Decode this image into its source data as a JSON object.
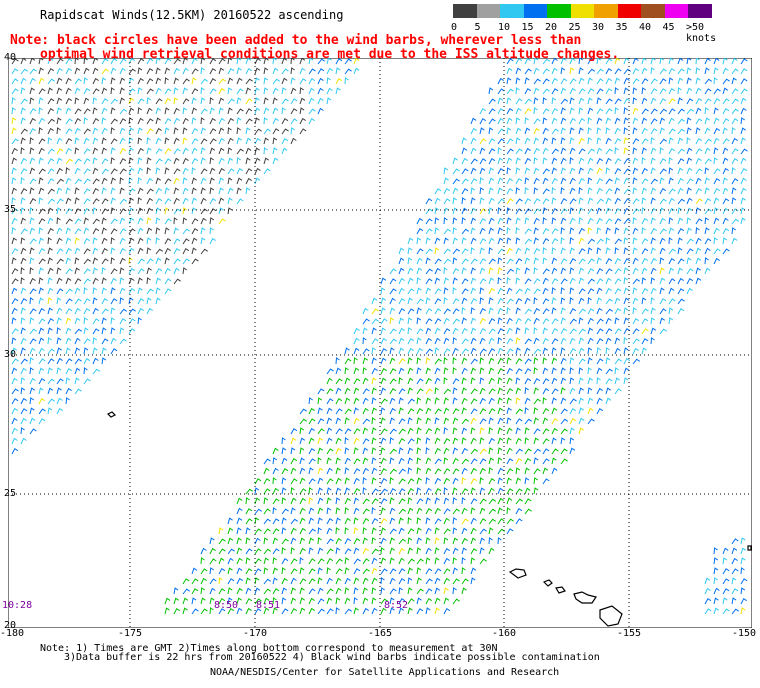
{
  "title": "Rapidscat Winds(12.5KM) 20160522 ascending",
  "note_line1": "Note: black circles have been added to the wind barbs, wherever less than",
  "note_line2": "optimal wind retrieval conditions are met due to the ISS altitude changes.",
  "legend": {
    "labels": [
      "0",
      "5",
      "10",
      "15",
      "20",
      "25",
      "30",
      "35",
      "40",
      "45",
      ">50 knots"
    ],
    "colors": [
      "#404040",
      "#a0a0a0",
      "#30c8f0",
      "#0070f0",
      "#00c000",
      "#f0e000",
      "#f0a000",
      "#f00000",
      "#a05020",
      "#f000f0",
      "#600080"
    ]
  },
  "axes": {
    "lon_labels": [
      "-180",
      "-175",
      "-170",
      "-165",
      "-160",
      "-155",
      "-150"
    ],
    "lat_labels": [
      "40",
      "35",
      "30",
      "25",
      "20"
    ]
  },
  "pass_times": [
    "10:28",
    "8:50",
    "8:51",
    "8:52"
  ],
  "footer": {
    "line1": "Note: 1) Times are GMT 2)Times along bottom correspond to measurement at 30N",
    "line2": "3)Data buffer is 22 hrs from 20160522 4) Black wind barbs indicate possible contamination",
    "line3": "NOAA/NESDIS/Center for Satellite Applications and Research"
  }
}
